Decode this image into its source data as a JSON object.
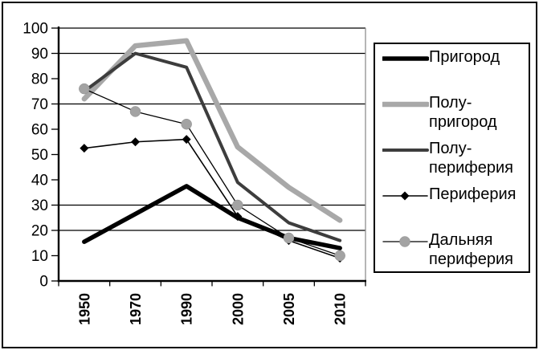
{
  "chart_data": {
    "type": "line",
    "title": "",
    "xlabel": "",
    "ylabel": "",
    "categories": [
      "1950",
      "1970",
      "1990",
      "2000",
      "2005",
      "2010"
    ],
    "series": [
      {
        "name": "Пригород",
        "legend_lines": [
          "Пригород"
        ],
        "values": [
          15.5,
          26.5,
          37.5,
          25,
          17,
          13
        ],
        "color": "#000000",
        "width": 5.5,
        "marker": "none"
      },
      {
        "name": "Полу-пригород",
        "legend_lines": [
          "Полу-",
          "пригород"
        ],
        "values": [
          72,
          93,
          95,
          53,
          37,
          24
        ],
        "color": "#a8a8a8",
        "width": 6.5,
        "marker": "none"
      },
      {
        "name": "Полу-периферия",
        "legend_lines": [
          "Полу-",
          "периферия"
        ],
        "values": [
          75,
          90,
          84.5,
          39,
          23,
          16
        ],
        "color": "#3d3d3d",
        "width": 4,
        "marker": "none"
      },
      {
        "name": "Периферия",
        "legend_lines": [
          "Периферия"
        ],
        "values": [
          52.5,
          55,
          56,
          25.5,
          16,
          9
        ],
        "color": "#000000",
        "width": 1.6,
        "marker": "diamond",
        "marker_color": "#000000",
        "marker_size": 11
      },
      {
        "name": "Дальняя периферия",
        "legend_lines": [
          "Дальняя",
          "периферия"
        ],
        "values": [
          76,
          67,
          62,
          30,
          17,
          10
        ],
        "color": "#000000",
        "width": 1.3,
        "marker": "circle",
        "marker_color": "#a3a3a3",
        "marker_size": 13
      }
    ],
    "ylim": [
      0,
      100
    ],
    "yticks": [
      0,
      10,
      20,
      30,
      40,
      50,
      60,
      70,
      80,
      90,
      100
    ],
    "gridline_values": [
      20,
      30,
      70,
      90,
      100
    ],
    "grid": "partial-horizontal",
    "legend_position": "right",
    "axis_color": "#000000",
    "gridline_color": "#000000",
    "plot_right_border_color": "#8f8f8f",
    "background_color": "#ffffff"
  }
}
